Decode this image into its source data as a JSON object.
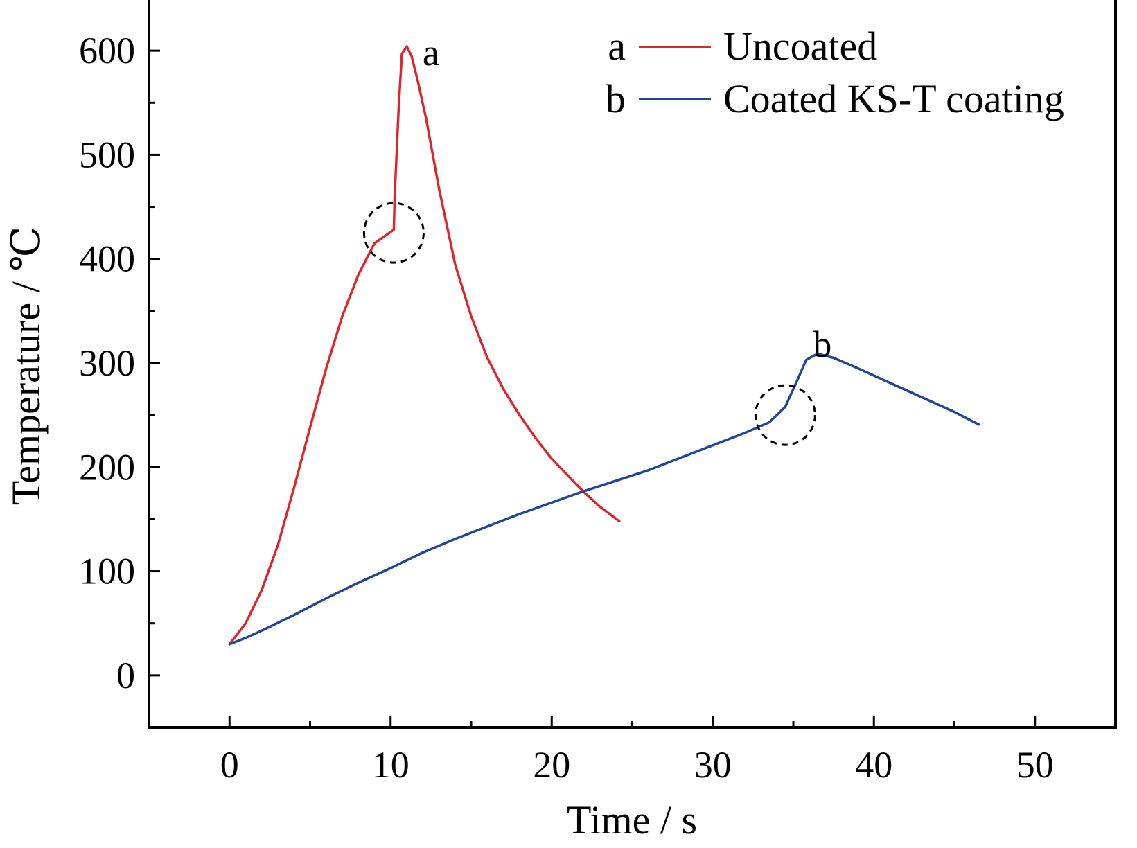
{
  "chart_data": {
    "type": "line",
    "xlabel": "Time / s",
    "ylabel": "Temperature / ℃",
    "xlim": [
      -5,
      55
    ],
    "ylim": [
      -50,
      650
    ],
    "xticks": [
      0,
      10,
      20,
      30,
      40,
      50
    ],
    "yticks": [
      0,
      100,
      200,
      300,
      400,
      500,
      600
    ],
    "grid": false,
    "legend_position": "top-right",
    "series": [
      {
        "name": "Uncoated",
        "marker": "a",
        "color": "#e0242a",
        "x": [
          0,
          1,
          2,
          3,
          4,
          5,
          6,
          7,
          8,
          9,
          10.2,
          10.25,
          10.5,
          10.7,
          11.0,
          11.3,
          11.7,
          12.2,
          13,
          14,
          15,
          16,
          17,
          18,
          19,
          20,
          21,
          22,
          23,
          24.2
        ],
        "y": [
          30,
          50,
          82,
          125,
          180,
          238,
          295,
          345,
          385,
          415,
          428,
          460,
          545,
          597,
          604,
          595,
          570,
          535,
          468,
          395,
          345,
          305,
          275,
          250,
          228,
          208,
          192,
          176,
          162,
          148
        ]
      },
      {
        "name": "Coated KS-T coating",
        "marker": "b",
        "color": "#1f4699",
        "x": [
          0,
          1,
          2,
          4,
          6,
          8,
          10,
          12,
          14,
          16,
          18,
          20,
          22,
          24,
          26,
          28,
          30,
          32,
          33.5,
          34.5,
          35.2,
          35.8,
          36.5,
          37.5,
          39,
          41,
          43,
          45,
          46.5
        ],
        "y": [
          30,
          36,
          43,
          58,
          74,
          89,
          103,
          118,
          131,
          143,
          155,
          166,
          177,
          187,
          197,
          209,
          221,
          233,
          243,
          258,
          282,
          303,
          309,
          305,
          295,
          281,
          267,
          253,
          241
        ]
      }
    ],
    "annotations": [
      {
        "text": "a",
        "x": 12.5,
        "y": 598
      },
      {
        "text": "b",
        "x": 36.8,
        "y": 318
      },
      {
        "type": "dashed-circle",
        "x": 10.2,
        "y": 425
      },
      {
        "type": "dashed-circle",
        "x": 34.5,
        "y": 250
      }
    ]
  }
}
